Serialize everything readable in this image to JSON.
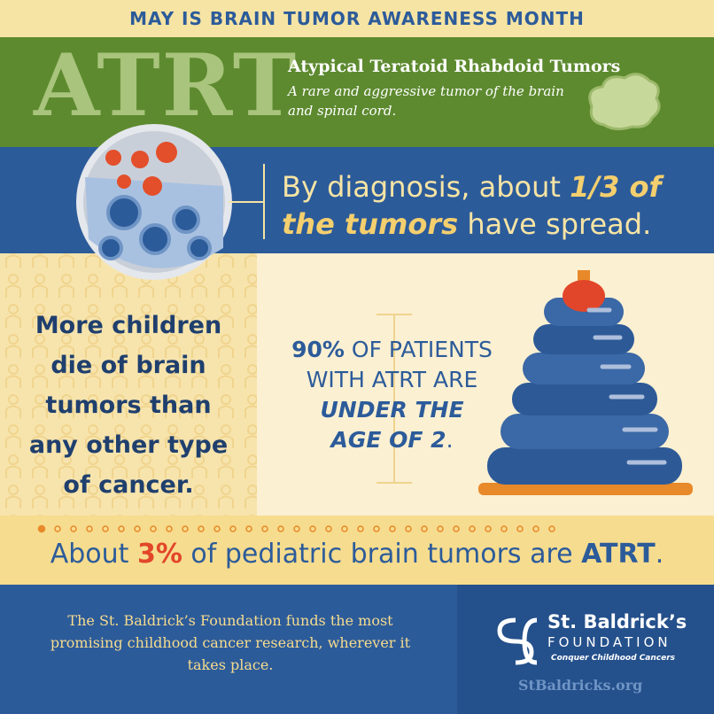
{
  "header": {
    "banner": "MAY IS BRAIN TUMOR AWARENESS MONTH"
  },
  "intro": {
    "acronym": "ATRT",
    "full_name": "Atypical Teratoid Rhabdoid Tumors",
    "description": "A rare and aggressive tumor of the brain and spinal cord."
  },
  "diagnosis": {
    "lead": "By diagnosis, about ",
    "highlight": "1/3 of the tumors",
    "tail": " have spread."
  },
  "children": {
    "lines": [
      "More children",
      "die of brain",
      "tumors than",
      "any other type",
      "of cancer."
    ]
  },
  "age": {
    "bold": "90%",
    "rest": " OF PATIENTS WITH ATRT ARE",
    "emphasis1": "UNDER THE",
    "emphasis2": "AGE OF 2",
    "end": "."
  },
  "share": {
    "lead": "About ",
    "percent": "3%",
    "middle": " of pediatric brain tumors are ",
    "name": "ATRT",
    "end": "."
  },
  "footer": {
    "mission": "The St. Baldrick’s Foundation funds the most promising childhood cancer research, wherever it takes place.",
    "logo_name": "St. Baldrick’s",
    "logo_sub": "FOUNDATION",
    "tagline": "Conquer Childhood Cancers",
    "url": "StBaldricks.org"
  }
}
